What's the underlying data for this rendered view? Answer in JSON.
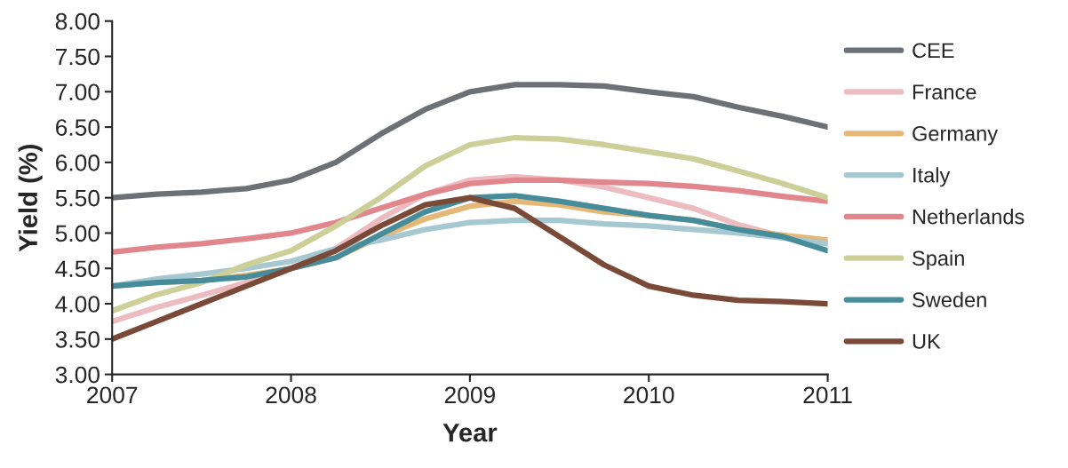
{
  "chart_data": {
    "type": "line",
    "xlabel": "Year",
    "ylabel": "Yield (%)",
    "x": [
      2007,
      2007.25,
      2007.5,
      2007.75,
      2008,
      2008.25,
      2008.5,
      2008.75,
      2009,
      2009.25,
      2009.5,
      2009.75,
      2010,
      2010.25,
      2010.5,
      2010.75,
      2011
    ],
    "series": [
      {
        "name": "CEE",
        "color": "#6d7075",
        "values": [
          5.5,
          5.55,
          5.58,
          5.63,
          5.75,
          6.0,
          6.4,
          6.75,
          7.0,
          7.1,
          7.1,
          7.08,
          7.0,
          6.93,
          6.78,
          6.65,
          6.5
        ]
      },
      {
        "name": "France",
        "color": "#ecbcc0",
        "values": [
          3.75,
          3.95,
          4.12,
          4.3,
          4.5,
          4.78,
          5.2,
          5.55,
          5.75,
          5.8,
          5.75,
          5.65,
          5.5,
          5.35,
          5.12,
          4.95,
          4.85
        ]
      },
      {
        "name": "Germany",
        "color": "#e6b878",
        "values": [
          4.25,
          4.3,
          4.33,
          4.4,
          4.5,
          4.65,
          4.95,
          5.2,
          5.38,
          5.45,
          5.4,
          5.3,
          5.25,
          5.18,
          5.05,
          4.97,
          4.9
        ]
      },
      {
        "name": "Italy",
        "color": "#a6c8d0",
        "values": [
          4.25,
          4.35,
          4.42,
          4.5,
          4.6,
          4.78,
          4.9,
          5.05,
          5.15,
          5.18,
          5.18,
          5.13,
          5.1,
          5.05,
          5.0,
          4.93,
          4.85
        ]
      },
      {
        "name": "Netherlands",
        "color": "#e0868c",
        "values": [
          4.73,
          4.8,
          4.85,
          4.92,
          5.0,
          5.15,
          5.35,
          5.55,
          5.7,
          5.75,
          5.75,
          5.72,
          5.7,
          5.66,
          5.6,
          5.52,
          5.45
        ]
      },
      {
        "name": "Spain",
        "color": "#cccf98",
        "values": [
          3.9,
          4.13,
          4.3,
          4.55,
          4.75,
          5.1,
          5.5,
          5.95,
          6.25,
          6.35,
          6.33,
          6.25,
          6.15,
          6.05,
          5.88,
          5.7,
          5.5
        ]
      },
      {
        "name": "Sweden",
        "color": "#468c9a",
        "values": [
          4.25,
          4.3,
          4.33,
          4.38,
          4.5,
          4.65,
          4.98,
          5.3,
          5.5,
          5.53,
          5.45,
          5.35,
          5.25,
          5.18,
          5.05,
          4.95,
          4.75
        ]
      },
      {
        "name": "UK",
        "color": "#7a4a38",
        "values": [
          3.5,
          3.75,
          4.0,
          4.25,
          4.5,
          4.75,
          5.1,
          5.4,
          5.5,
          5.35,
          4.95,
          4.55,
          4.25,
          4.12,
          4.05,
          4.03,
          4.0
        ]
      }
    ],
    "xlim": [
      2007,
      2011
    ],
    "xticks": [
      2007,
      2008,
      2009,
      2010,
      2011
    ],
    "ylim": [
      3,
      8
    ],
    "yticks": [
      {
        "value": 3,
        "label": "3.00"
      },
      {
        "value": 3.5,
        "label": "3.50"
      },
      {
        "value": 4,
        "label": "4.00"
      },
      {
        "value": 4.5,
        "label": "4.50"
      },
      {
        "value": 5,
        "label": "5.00"
      },
      {
        "value": 5.5,
        "label": "5.50"
      },
      {
        "value": 6,
        "label": "6.00"
      },
      {
        "value": 6.5,
        "label": "6.50"
      },
      {
        "value": 7,
        "label": "7.00"
      },
      {
        "value": 7.5,
        "label": "7.50"
      },
      {
        "value": 8,
        "label": "8.00"
      }
    ],
    "grid": false,
    "legend": "right"
  }
}
